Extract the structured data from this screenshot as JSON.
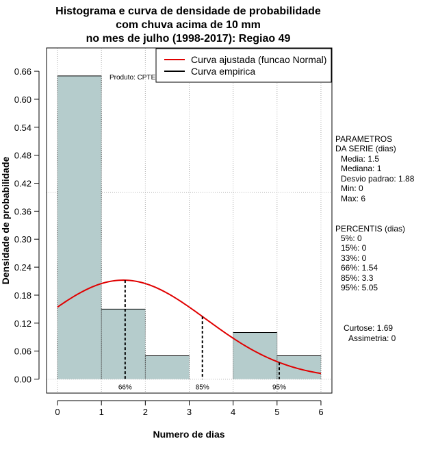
{
  "chart_data": {
    "type": "bar",
    "title_lines": [
      "Histograma e curva de densidade de probabilidade",
      "com chuva acima de 10 mm",
      "no mes de julho (1998-2017): Regiao 49"
    ],
    "xlabel": "Numero de dias",
    "ylabel": "Densidade de probabilidade",
    "xlim": [
      -0.25,
      6.25
    ],
    "ylim": [
      -0.03,
      0.71
    ],
    "x_ticks": [
      "0",
      "1",
      "2",
      "3",
      "4",
      "5",
      "6"
    ],
    "y_ticks": [
      "0.00",
      "0.06",
      "0.12",
      "0.18",
      "0.24",
      "0.30",
      "0.36",
      "0.42",
      "0.48",
      "0.54",
      "0.60",
      "0.66"
    ],
    "y_tick_values": [
      0,
      0.06,
      0.12,
      0.18,
      0.24,
      0.3,
      0.36,
      0.42,
      0.48,
      0.54,
      0.6,
      0.66
    ],
    "bins": [
      {
        "start": 0,
        "end": 1,
        "density": 0.65
      },
      {
        "start": 1,
        "end": 2,
        "density": 0.15
      },
      {
        "start": 2,
        "end": 3,
        "density": 0.05
      },
      {
        "start": 3,
        "end": 4,
        "density": 0
      },
      {
        "start": 4,
        "end": 5,
        "density": 0.1
      },
      {
        "start": 5,
        "end": 6,
        "density": 0.05
      }
    ],
    "normal_curve": {
      "mean": 1.5,
      "sd": 1.88,
      "x_range": [
        0,
        6
      ]
    },
    "reference_hline": 0.4,
    "percentile_lines": [
      {
        "label": "66%",
        "x": 1.54
      },
      {
        "label": "85%",
        "x": 3.3
      },
      {
        "label": "95%",
        "x": 5.05
      }
    ],
    "legend": [
      {
        "label": "Curva ajustada (funcao Normal)",
        "color": "#e00000"
      },
      {
        "label": "Curva empirica",
        "color": "#000000"
      }
    ],
    "product_label": "Produto: CPTEC/INPE",
    "colors": {
      "bar_fill": "#b5cccc",
      "curve": "#e00000",
      "grid": "#b0b0b0"
    }
  },
  "side_panel": {
    "params_title": [
      "PARAMETROS",
      "DA SERIE (dias)"
    ],
    "params": [
      "Media: 1.5",
      "Mediana: 1",
      "Desvio padrao: 1.88",
      "Min: 0",
      "Max: 6"
    ],
    "percentis_title": "PERCENTIS (dias)",
    "percentis": [
      "5%: 0",
      "15%: 0",
      "33%: 0",
      "66%: 1.54",
      "85%: 3.3",
      "95%: 5.05"
    ],
    "curtose": "Curtose: 1.69",
    "assimetria": "Assimetria: 0"
  }
}
